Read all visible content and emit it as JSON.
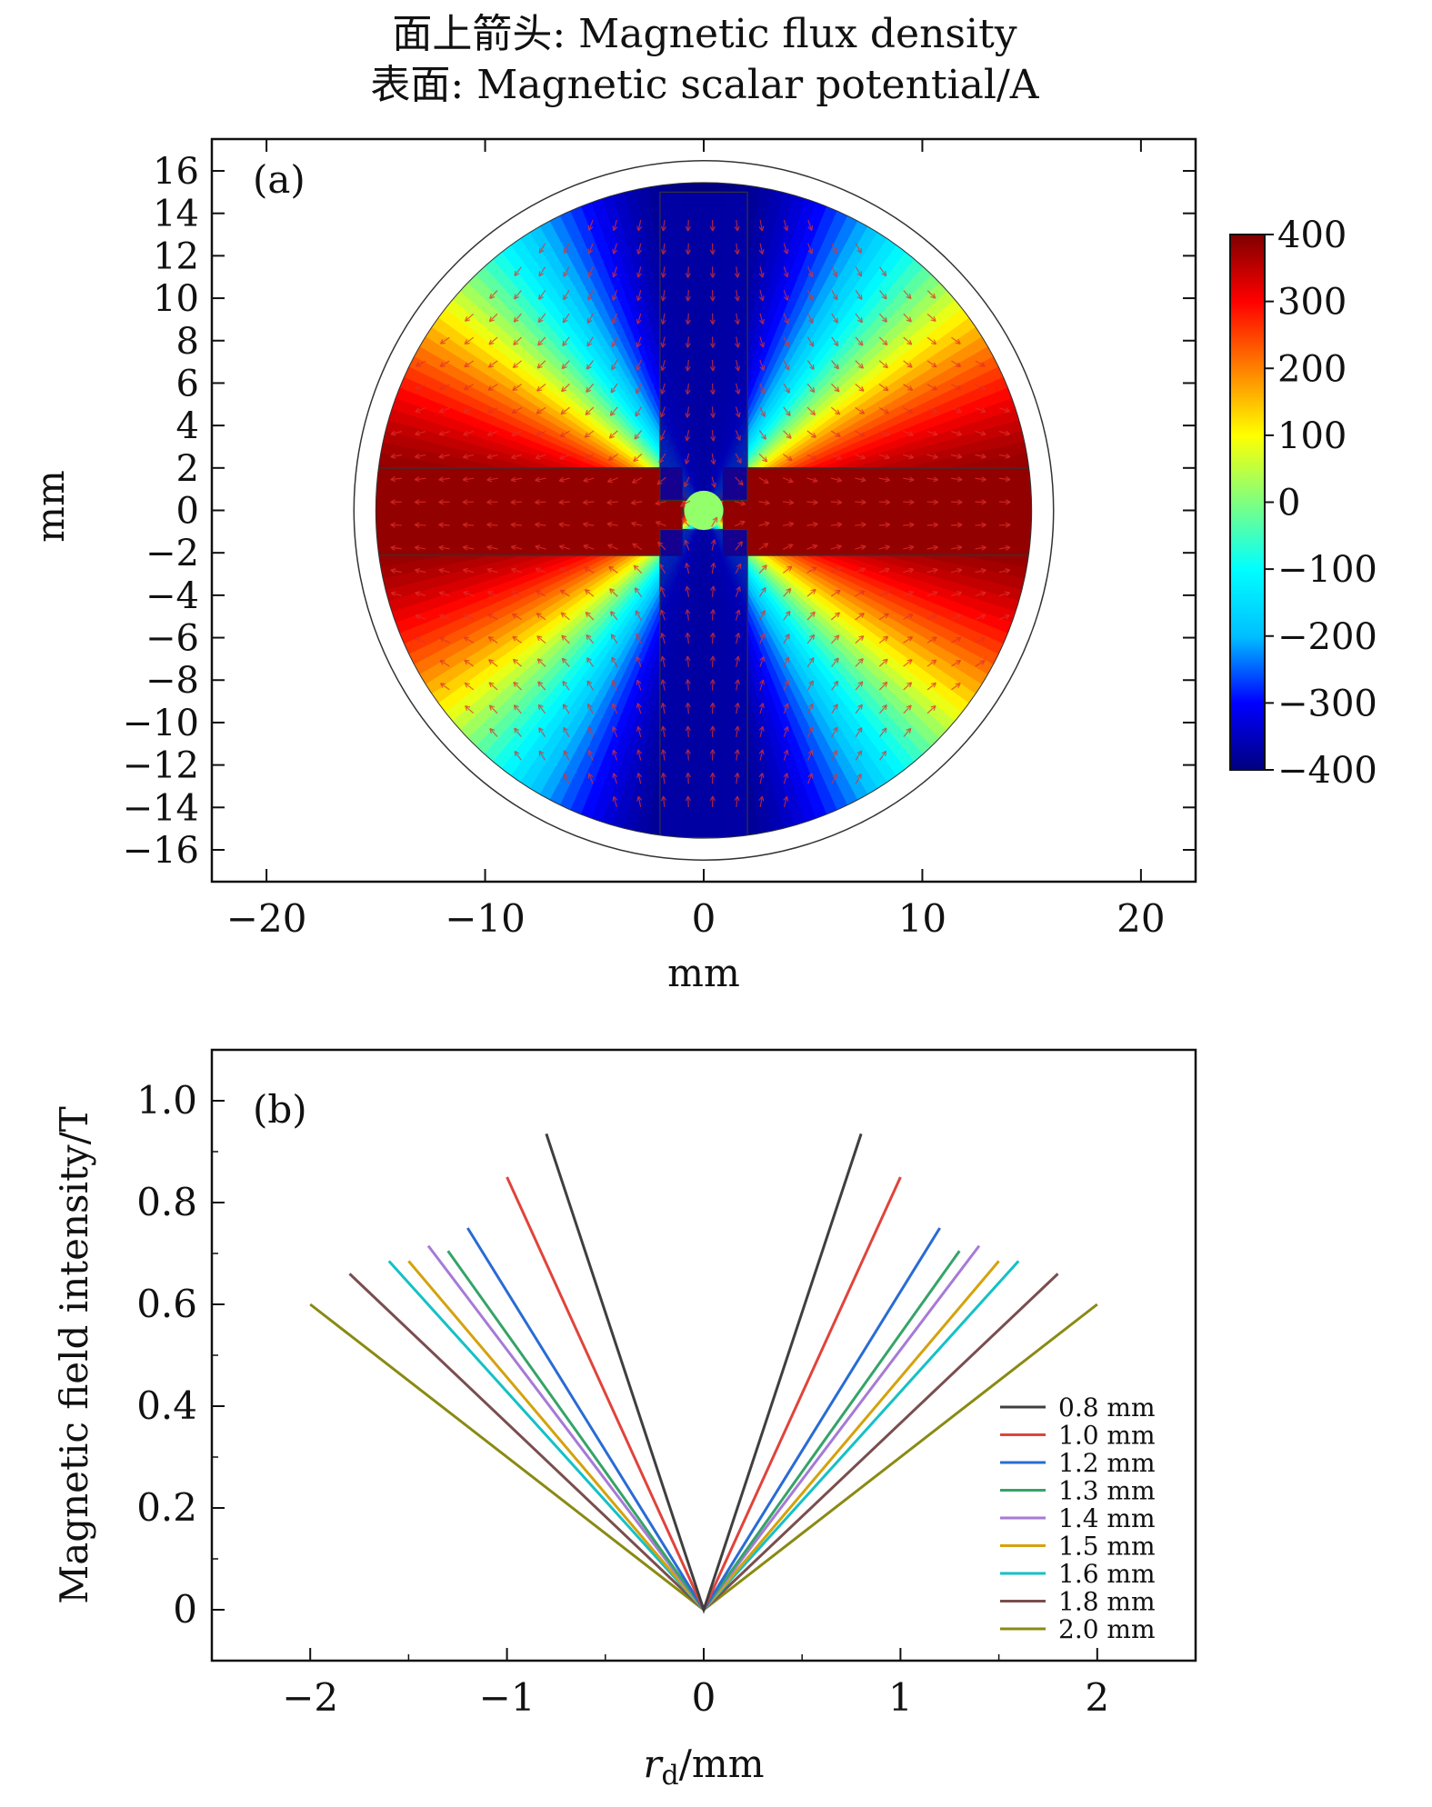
{
  "figure": {
    "title_line1": "面上箭头: Magnetic flux density",
    "title_line2": "表面: Magnetic scalar potential/A"
  },
  "chart_data": [
    {
      "type": "heatmap",
      "panel_label": "(a)",
      "xlabel": "mm",
      "ylabel": "mm",
      "xlim": [
        -22.5,
        22.5
      ],
      "ylim": [
        -17.5,
        17.5
      ],
      "xticks": [
        -20,
        -10,
        0,
        10,
        20
      ],
      "yticks": [
        -16,
        -14,
        -12,
        -10,
        -8,
        -6,
        -4,
        -2,
        0,
        2,
        4,
        6,
        8,
        10,
        12,
        14,
        16
      ],
      "domain_radius": 15,
      "outer_circle_radius": 16,
      "colorbar": {
        "min": -400,
        "max": 400,
        "ticks": [
          400,
          300,
          200,
          100,
          0,
          -100,
          -200,
          -300,
          -400
        ],
        "colormap": [
          "#00007f",
          "#0000ff",
          "#00bfff",
          "#00ffff",
          "#7fff7f",
          "#ffff00",
          "#ff8000",
          "#ff0000",
          "#7f0000"
        ]
      },
      "arrow_color": "#e0302a"
    },
    {
      "type": "line",
      "panel_label": "(b)",
      "xlabel": "r",
      "xlabel_sub": "d",
      "xlabel_unit": "/mm",
      "ylabel": "Magnetic field intensity/T",
      "xlim": [
        -2.5,
        2.5
      ],
      "ylim": [
        -0.1,
        1.1
      ],
      "xticks": [
        -2,
        -1,
        0,
        1,
        2
      ],
      "xtick_labels": [
        "−2",
        "−1",
        "0",
        "1",
        "2"
      ],
      "yticks": [
        0,
        0.2,
        0.4,
        0.6,
        0.8,
        1.0
      ],
      "ytick_labels": [
        "0",
        "0.2",
        "0.4",
        "0.6",
        "0.8",
        "1.0"
      ],
      "legend_position": "bottom-right",
      "series": [
        {
          "name": "0.8 mm",
          "color": "#3f3f3f",
          "x": [
            -0.8,
            0,
            0.8
          ],
          "y": [
            0.935,
            0,
            0.935
          ]
        },
        {
          "name": "1.0 mm",
          "color": "#e0443c",
          "x": [
            -1.0,
            0,
            1.0
          ],
          "y": [
            0.85,
            0,
            0.85
          ]
        },
        {
          "name": "1.2 mm",
          "color": "#2a6bd4",
          "x": [
            -1.2,
            0,
            1.2
          ],
          "y": [
            0.75,
            0,
            0.75
          ]
        },
        {
          "name": "1.3 mm",
          "color": "#36a368",
          "x": [
            -1.3,
            0,
            1.3
          ],
          "y": [
            0.705,
            0,
            0.705
          ]
        },
        {
          "name": "1.4 mm",
          "color": "#a77ad6",
          "x": [
            -1.4,
            0,
            1.4
          ],
          "y": [
            0.715,
            0,
            0.715
          ]
        },
        {
          "name": "1.5 mm",
          "color": "#d4a20e",
          "x": [
            -1.5,
            0,
            1.5
          ],
          "y": [
            0.685,
            0,
            0.685
          ]
        },
        {
          "name": "1.6 mm",
          "color": "#14c1c6",
          "x": [
            -1.6,
            0,
            1.6
          ],
          "y": [
            0.685,
            0,
            0.685
          ]
        },
        {
          "name": "1.8 mm",
          "color": "#7a4e4e",
          "x": [
            -1.8,
            0,
            1.8
          ],
          "y": [
            0.66,
            0,
            0.66
          ]
        },
        {
          "name": "2.0 mm",
          "color": "#8a8a14",
          "x": [
            -2.0,
            0,
            2.0
          ],
          "y": [
            0.6,
            0,
            0.6
          ]
        }
      ]
    }
  ]
}
